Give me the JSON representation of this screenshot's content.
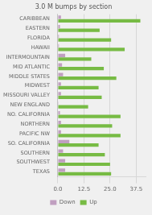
{
  "chart_data": {
    "type": "bar",
    "orientation": "horizontal",
    "title": "3.0 M bumps by section",
    "categories": [
      "CARIBBEAN",
      "EASTERN",
      "FLORIDA",
      "HAWAII",
      "INTERMOUNTAIN",
      "MID ATLANTIC",
      "MIDDLE STATES",
      "MIDWEST",
      "MISSOURI VALLEY",
      "NEW ENGLAND",
      "NO. CALIFORNIA",
      "NORTHERN",
      "PACIFIC NW",
      "SO. CALIFORNIA",
      "SOUTHERN",
      "SOUTHWEST",
      "TEXAS"
    ],
    "series": [
      {
        "name": "Down",
        "color": "#c09fc0",
        "values": [
          1.5,
          1.0,
          0.5,
          0.5,
          3.5,
          2.0,
          2.5,
          1.5,
          1.5,
          0.3,
          1.0,
          1.5,
          1.5,
          5.5,
          2.5,
          3.5,
          3.5
        ]
      },
      {
        "name": "Up",
        "color": "#77bb44",
        "values": [
          39.5,
          20.0,
          25.5,
          32.0,
          16.0,
          22.0,
          28.0,
          19.5,
          21.0,
          14.5,
          30.0,
          26.0,
          30.0,
          19.5,
          22.5,
          25.0,
          25.5
        ]
      }
    ],
    "xlim": [
      0,
      42.0
    ],
    "xticks": [
      {
        "value": 0,
        "label": "0.0"
      },
      12.5,
      {
        "value": 25,
        "label": "25.0"
      },
      37.5
    ],
    "grid": true,
    "legend": "bottom"
  }
}
